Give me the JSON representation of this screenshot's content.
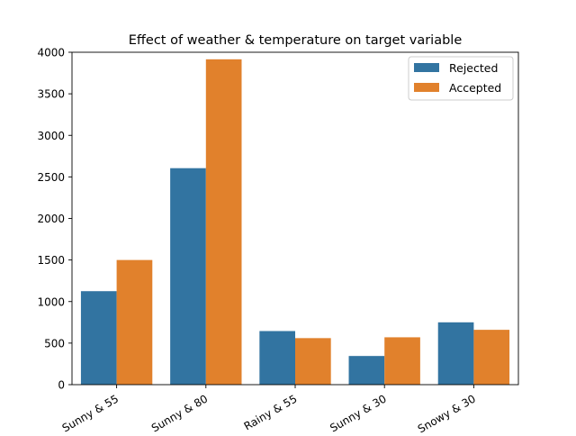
{
  "chart_data": {
    "type": "bar",
    "title": "Effect of weather & temperature on target variable",
    "xlabel": "",
    "ylabel": "",
    "categories": [
      "Sunny & 55",
      "Sunny & 80",
      "Rainy & 55",
      "Sunny & 30",
      "Snowy & 30"
    ],
    "series": [
      {
        "name": "Rejected",
        "color": "#3274a1",
        "values": [
          1125,
          2605,
          645,
          345,
          750
        ]
      },
      {
        "name": "Accepted",
        "color": "#e1812c",
        "values": [
          1500,
          3915,
          560,
          570,
          660
        ]
      }
    ],
    "ylim": [
      0,
      4000
    ],
    "yticks": [
      0,
      500,
      1000,
      1500,
      2000,
      2500,
      3000,
      3500,
      4000
    ],
    "grid": false,
    "legend_position": "top-right"
  }
}
